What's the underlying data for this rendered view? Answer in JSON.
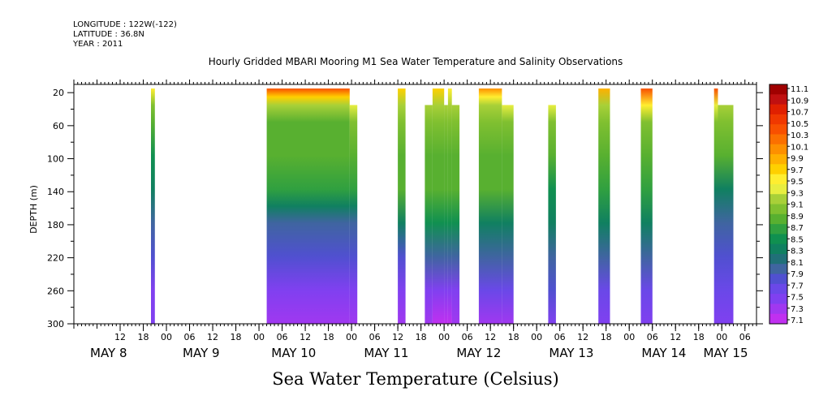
{
  "header": {
    "longitude": "LONGITUDE : 122W(-122)",
    "latitude": "LATITUDE : 36.8N",
    "year": "YEAR : 2011"
  },
  "chart_data": {
    "type": "heatmap",
    "title": "Hourly Gridded MBARI Mooring M1 Sea Water Temperature and Salinity Observations",
    "xlabel": "Sea Water Temperature (Celsius)",
    "ylabel": "DEPTH (m)",
    "y_ticks": [
      20,
      60,
      100,
      140,
      180,
      220,
      260,
      300
    ],
    "ylim": [
      300,
      10
    ],
    "y_inverted": true,
    "x_hour_ticks": [
      {
        "h": 12,
        "label": "12"
      },
      {
        "h": 18,
        "label": "18"
      },
      {
        "h": 24,
        "label": "00"
      },
      {
        "h": 30,
        "label": "06"
      },
      {
        "h": 36,
        "label": "12"
      },
      {
        "h": 42,
        "label": "18"
      },
      {
        "h": 48,
        "label": "00"
      },
      {
        "h": 54,
        "label": "06"
      },
      {
        "h": 60,
        "label": "12"
      },
      {
        "h": 66,
        "label": "18"
      },
      {
        "h": 72,
        "label": "00"
      },
      {
        "h": 78,
        "label": "06"
      },
      {
        "h": 84,
        "label": "12"
      },
      {
        "h": 90,
        "label": "18"
      },
      {
        "h": 96,
        "label": "00"
      },
      {
        "h": 102,
        "label": "06"
      },
      {
        "h": 108,
        "label": "12"
      },
      {
        "h": 114,
        "label": "18"
      },
      {
        "h": 120,
        "label": "00"
      },
      {
        "h": 126,
        "label": "06"
      },
      {
        "h": 132,
        "label": "12"
      },
      {
        "h": 138,
        "label": "18"
      },
      {
        "h": 144,
        "label": "00"
      },
      {
        "h": 150,
        "label": "06"
      },
      {
        "h": 156,
        "label": "12"
      },
      {
        "h": 162,
        "label": "18"
      },
      {
        "h": 168,
        "label": "00"
      },
      {
        "h": 174,
        "label": "06"
      }
    ],
    "x_day_labels": [
      {
        "h": 9,
        "label": "MAY  8"
      },
      {
        "h": 33,
        "label": "MAY  9"
      },
      {
        "h": 57,
        "label": "MAY 10"
      },
      {
        "h": 81,
        "label": "MAY 11"
      },
      {
        "h": 105,
        "label": "MAY 12"
      },
      {
        "h": 129,
        "label": "MAY 13"
      },
      {
        "h": 153,
        "label": "MAY 14"
      },
      {
        "h": 169,
        "label": "MAY 15"
      }
    ],
    "xlim_hours": [
      0,
      177
    ],
    "segments": [
      {
        "start": 20,
        "end": 21,
        "top": 20,
        "profile": [
          [
            20,
            9.6
          ],
          [
            40,
            9.1
          ],
          [
            60,
            8.8
          ],
          [
            100,
            8.5
          ],
          [
            140,
            8.3
          ],
          [
            180,
            8.1
          ],
          [
            220,
            7.9
          ],
          [
            260,
            7.6
          ],
          [
            300,
            7.5
          ]
        ]
      },
      {
        "start": 50,
        "end": 71.5,
        "top": 20,
        "profile": [
          [
            20,
            10.3
          ],
          [
            30,
            9.7
          ],
          [
            40,
            9.2
          ],
          [
            60,
            8.9
          ],
          [
            100,
            8.8
          ],
          [
            140,
            8.7
          ],
          [
            160,
            8.4
          ],
          [
            180,
            8.0
          ],
          [
            220,
            7.8
          ],
          [
            260,
            7.5
          ],
          [
            300,
            7.3
          ]
        ]
      },
      {
        "start": 71.5,
        "end": 73.5,
        "top": 40,
        "profile": [
          [
            40,
            9.4
          ],
          [
            60,
            9.0
          ],
          [
            100,
            8.8
          ],
          [
            140,
            8.7
          ],
          [
            160,
            8.4
          ],
          [
            180,
            8.0
          ],
          [
            220,
            7.8
          ],
          [
            260,
            7.5
          ],
          [
            300,
            7.3
          ]
        ]
      },
      {
        "start": 84,
        "end": 86,
        "top": 20,
        "profile": [
          [
            20,
            9.7
          ],
          [
            40,
            9.2
          ],
          [
            60,
            9.0
          ],
          [
            100,
            8.9
          ],
          [
            140,
            8.8
          ],
          [
            180,
            8.4
          ],
          [
            220,
            7.9
          ],
          [
            260,
            7.6
          ],
          [
            300,
            7.4
          ]
        ]
      },
      {
        "start": 91,
        "end": 93,
        "top": 40,
        "profile": [
          [
            40,
            9.2
          ],
          [
            60,
            9.0
          ],
          [
            100,
            8.9
          ],
          [
            140,
            8.8
          ],
          [
            180,
            8.5
          ],
          [
            220,
            8.0
          ],
          [
            260,
            7.6
          ],
          [
            300,
            7.4
          ]
        ]
      },
      {
        "start": 93,
        "end": 96,
        "top": 20,
        "profile": [
          [
            20,
            9.7
          ],
          [
            40,
            9.2
          ],
          [
            60,
            9.0
          ],
          [
            100,
            8.9
          ],
          [
            140,
            8.8
          ],
          [
            180,
            8.5
          ],
          [
            220,
            8.0
          ],
          [
            260,
            7.5
          ],
          [
            300,
            7.2
          ]
        ]
      },
      {
        "start": 96,
        "end": 97,
        "top": 40,
        "profile": [
          [
            40,
            9.2
          ],
          [
            60,
            9.0
          ],
          [
            100,
            8.9
          ],
          [
            140,
            8.8
          ],
          [
            180,
            8.5
          ],
          [
            220,
            8.0
          ],
          [
            260,
            7.5
          ],
          [
            300,
            7.2
          ]
        ]
      },
      {
        "start": 97,
        "end": 98,
        "top": 20,
        "profile": [
          [
            20,
            9.6
          ],
          [
            40,
            9.2
          ],
          [
            60,
            9.0
          ],
          [
            100,
            8.9
          ],
          [
            140,
            8.8
          ],
          [
            180,
            8.5
          ],
          [
            220,
            8.0
          ],
          [
            260,
            7.5
          ],
          [
            300,
            7.2
          ]
        ]
      },
      {
        "start": 98,
        "end": 100,
        "top": 40,
        "profile": [
          [
            40,
            9.2
          ],
          [
            60,
            9.0
          ],
          [
            100,
            8.9
          ],
          [
            140,
            8.8
          ],
          [
            180,
            8.5
          ],
          [
            220,
            8.0
          ],
          [
            260,
            7.5
          ],
          [
            300,
            7.3
          ]
        ]
      },
      {
        "start": 105,
        "end": 111,
        "top": 20,
        "profile": [
          [
            20,
            10.1
          ],
          [
            30,
            9.6
          ],
          [
            40,
            9.2
          ],
          [
            60,
            9.0
          ],
          [
            100,
            8.9
          ],
          [
            140,
            8.8
          ],
          [
            180,
            8.4
          ],
          [
            220,
            8.0
          ],
          [
            260,
            7.7
          ],
          [
            300,
            7.4
          ]
        ]
      },
      {
        "start": 111,
        "end": 114,
        "top": 40,
        "profile": [
          [
            40,
            9.3
          ],
          [
            60,
            9.0
          ],
          [
            100,
            8.9
          ],
          [
            140,
            8.8
          ],
          [
            180,
            8.4
          ],
          [
            220,
            8.0
          ],
          [
            260,
            7.7
          ],
          [
            300,
            7.4
          ]
        ]
      },
      {
        "start": 123,
        "end": 125,
        "top": 40,
        "profile": [
          [
            40,
            9.4
          ],
          [
            60,
            9.1
          ],
          [
            100,
            8.9
          ],
          [
            140,
            8.6
          ],
          [
            180,
            8.3
          ],
          [
            220,
            8.1
          ],
          [
            260,
            7.8
          ],
          [
            300,
            7.5
          ]
        ]
      },
      {
        "start": 136,
        "end": 139,
        "top": 20,
        "profile": [
          [
            20,
            9.8
          ],
          [
            40,
            9.2
          ],
          [
            60,
            9.0
          ],
          [
            100,
            8.9
          ],
          [
            140,
            8.7
          ],
          [
            180,
            8.4
          ],
          [
            220,
            8.0
          ],
          [
            260,
            7.7
          ],
          [
            300,
            7.5
          ]
        ]
      },
      {
        "start": 147,
        "end": 150,
        "top": 20,
        "profile": [
          [
            20,
            10.3
          ],
          [
            40,
            9.5
          ],
          [
            60,
            9.1
          ],
          [
            100,
            8.9
          ],
          [
            140,
            8.7
          ],
          [
            180,
            8.3
          ],
          [
            220,
            8.0
          ],
          [
            260,
            7.7
          ],
          [
            300,
            7.5
          ]
        ]
      },
      {
        "start": 166,
        "end": 167,
        "top": 20,
        "profile": [
          [
            20,
            10.3
          ],
          [
            40,
            9.4
          ],
          [
            60,
            9.0
          ],
          [
            100,
            8.9
          ],
          [
            140,
            8.4
          ],
          [
            180,
            8.1
          ],
          [
            220,
            7.9
          ],
          [
            260,
            7.7
          ],
          [
            300,
            7.5
          ]
        ]
      },
      {
        "start": 167,
        "end": 171,
        "top": 40,
        "profile": [
          [
            40,
            9.2
          ],
          [
            60,
            9.0
          ],
          [
            100,
            8.9
          ],
          [
            140,
            8.4
          ],
          [
            180,
            8.1
          ],
          [
            220,
            7.9
          ],
          [
            260,
            7.7
          ],
          [
            300,
            7.5
          ]
        ]
      }
    ],
    "colorbar": {
      "labels": [
        "11.1",
        "10.9",
        "10.7",
        "10.5",
        "10.3",
        "10.1",
        "9.9",
        "9.7",
        "9.5",
        "9.3",
        "9.1",
        "8.9",
        "8.7",
        "8.5",
        "8.3",
        "8.1",
        "7.9",
        "7.7",
        "7.5",
        "7.3",
        "7.1"
      ],
      "colors": [
        "#a00000",
        "#c01010",
        "#e02000",
        "#f03800",
        "#f85000",
        "#fb7000",
        "#fd9000",
        "#ffb000",
        "#ffd000",
        "#ffee30",
        "#e8ee40",
        "#a8d038",
        "#80c030",
        "#58b030",
        "#30a040",
        "#109050",
        "#108060",
        "#207078",
        "#3f65a0",
        "#5050d0",
        "#6a48e8",
        "#8040f0",
        "#a038f0",
        "#c030f0"
      ]
    }
  }
}
